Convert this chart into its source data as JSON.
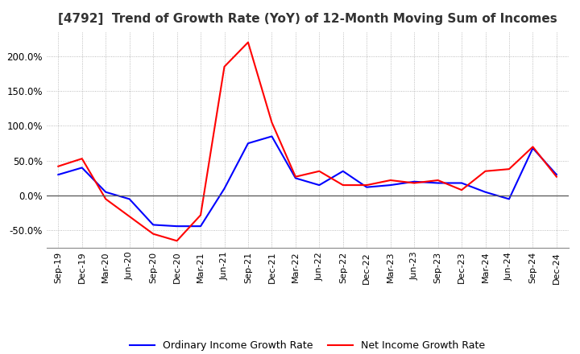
{
  "title": "[4792]  Trend of Growth Rate (YoY) of 12-Month Moving Sum of Incomes",
  "title_fontsize": 11,
  "ylim": [
    -75,
    235
  ],
  "yticks": [
    -50.0,
    0.0,
    50.0,
    100.0,
    150.0,
    200.0
  ],
  "legend_labels": [
    "Ordinary Income Growth Rate",
    "Net Income Growth Rate"
  ],
  "ordinary_color": "#0000FF",
  "net_color": "#FF0000",
  "background_color": "#FFFFFF",
  "grid_color": "#AAAAAA",
  "dates": [
    "Sep-19",
    "Dec-19",
    "Mar-20",
    "Jun-20",
    "Sep-20",
    "Dec-20",
    "Mar-21",
    "Jun-21",
    "Sep-21",
    "Dec-21",
    "Mar-22",
    "Jun-22",
    "Sep-22",
    "Dec-22",
    "Mar-23",
    "Jun-23",
    "Sep-23",
    "Dec-23",
    "Mar-24",
    "Jun-24",
    "Sep-24",
    "Dec-24"
  ],
  "ordinary_income": [
    30,
    40,
    5,
    -5,
    -42,
    -44,
    -44,
    10,
    75,
    85,
    25,
    15,
    35,
    12,
    15,
    20,
    18,
    18,
    5,
    -5,
    68,
    30
  ],
  "net_income": [
    42,
    53,
    -5,
    -30,
    -55,
    -65,
    -28,
    185,
    220,
    105,
    27,
    35,
    15,
    15,
    22,
    18,
    22,
    8,
    35,
    38,
    70,
    27
  ]
}
